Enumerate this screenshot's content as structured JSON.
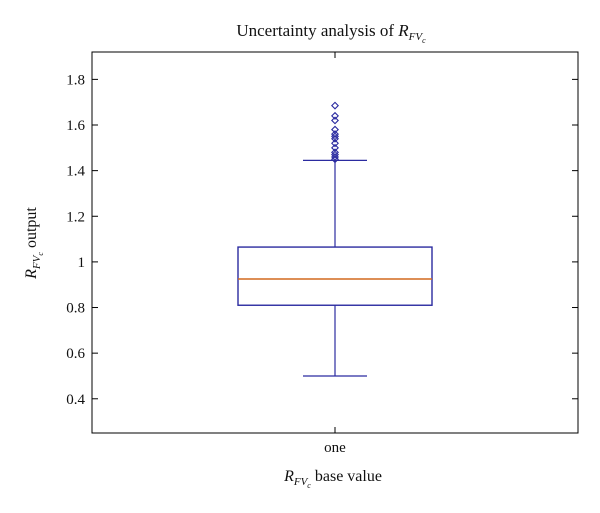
{
  "chart_data": {
    "type": "box",
    "title": {
      "prefix": "Uncertainty analysis of ",
      "symbol": "R",
      "sub": "FV",
      "subsub": "c"
    },
    "xlabel": {
      "symbol": "R",
      "sub": "FV",
      "subsub": "c",
      "suffix": " base value"
    },
    "ylabel": {
      "symbol": "R",
      "sub": "FV",
      "subsub": "c",
      "suffix": " output"
    },
    "ylim": [
      0.25,
      1.92
    ],
    "yticks": [
      0.4,
      0.6,
      0.8,
      1.0,
      1.2,
      1.4,
      1.6,
      1.8
    ],
    "ytick_labels": [
      "0.4",
      "0.6",
      "0.8",
      "1",
      "1.2",
      "1.4",
      "1.6",
      "1.8"
    ],
    "categories": [
      "one"
    ],
    "boxes": [
      {
        "category": "one",
        "whisker_low": 0.5,
        "q1": 0.81,
        "median": 0.925,
        "q3": 1.065,
        "whisker_high": 1.445,
        "outliers": [
          1.45,
          1.46,
          1.47,
          1.48,
          1.5,
          1.52,
          1.54,
          1.55,
          1.56,
          1.58,
          1.62,
          1.64,
          1.685
        ]
      }
    ],
    "grid": false,
    "colors": {
      "box": "#2b2ba0",
      "median": "#d2691e",
      "axes": "#000000"
    }
  }
}
